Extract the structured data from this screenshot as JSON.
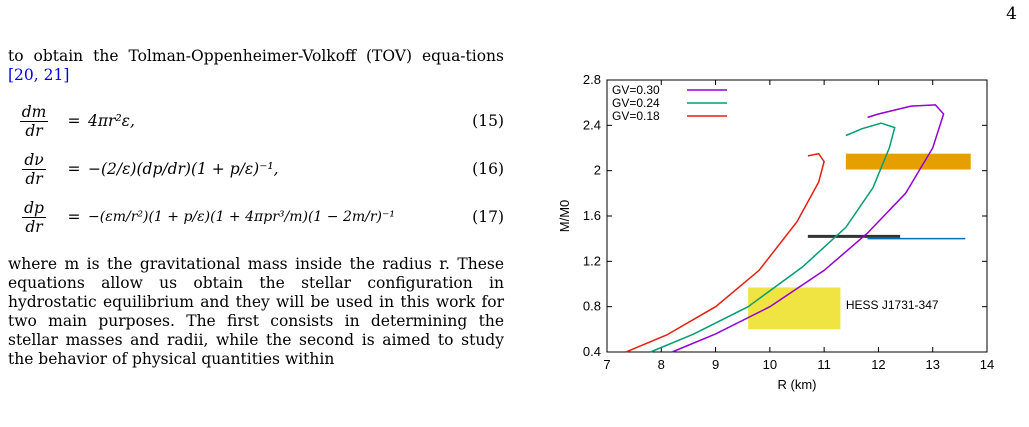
{
  "page_number": "4",
  "intro_text": "to obtain the Tolman-Oppenheimer-Volkoff (TOV) equa-tions",
  "intro_cites": "[20, 21]",
  "equations": [
    {
      "lhs_num": "dm",
      "lhs_den": "dr",
      "rhs": "4πr²ε,",
      "tag": "(15)"
    },
    {
      "lhs_num": "dν",
      "lhs_den": "dr",
      "rhs": "−(2/ε)(dp/dr)(1 + p/ε)⁻¹,",
      "tag": "(16)"
    },
    {
      "lhs_num": "dp",
      "lhs_den": "dr",
      "rhs": "−(εm/r²)(1 + p/ε)(1 + 4πpr³/m)(1 − 2m/r)⁻¹",
      "tag": "(17)"
    }
  ],
  "body_text": "where m is the gravitational mass inside the radius r. These equations allow us obtain the stellar configuration in hydrostatic equilibrium and they will be used in this work for two main purposes. The first consists in determining the stellar masses and radii, while the second is aimed to study the behavior of physical quantities within",
  "chart_data": {
    "type": "line",
    "xlabel": "R  (km)",
    "ylabel": "M/M0",
    "xlim": [
      7,
      14
    ],
    "ylim": [
      0.4,
      2.8
    ],
    "xticks": [
      "7",
      "8",
      "9",
      "10",
      "11",
      "12",
      "13",
      "14"
    ],
    "yticks": [
      "0.4",
      "0.8",
      "1.2",
      "1.6",
      "2",
      "2.4",
      "2.8"
    ],
    "legend_position": "top-left",
    "series": [
      {
        "name": "GV=0.30",
        "color": "#9400d3",
        "points": [
          [
            8.2,
            0.4
          ],
          [
            9.0,
            0.56
          ],
          [
            10.0,
            0.8
          ],
          [
            11.0,
            1.12
          ],
          [
            11.8,
            1.45
          ],
          [
            12.5,
            1.8
          ],
          [
            13.0,
            2.2
          ],
          [
            13.2,
            2.5
          ],
          [
            13.05,
            2.58
          ],
          [
            12.6,
            2.57
          ],
          [
            12.0,
            2.5
          ],
          [
            11.8,
            2.47
          ]
        ]
      },
      {
        "name": "GV=0.24",
        "color": "#009e73",
        "points": [
          [
            7.8,
            0.4
          ],
          [
            8.6,
            0.56
          ],
          [
            9.6,
            0.8
          ],
          [
            10.6,
            1.15
          ],
          [
            11.4,
            1.5
          ],
          [
            11.9,
            1.85
          ],
          [
            12.2,
            2.2
          ],
          [
            12.3,
            2.38
          ],
          [
            12.05,
            2.42
          ],
          [
            11.7,
            2.37
          ],
          [
            11.4,
            2.31
          ]
        ]
      },
      {
        "name": "GV=0.18",
        "color": "#e51e10",
        "points": [
          [
            7.35,
            0.4
          ],
          [
            8.1,
            0.55
          ],
          [
            9.0,
            0.8
          ],
          [
            9.8,
            1.12
          ],
          [
            10.5,
            1.55
          ],
          [
            10.9,
            1.9
          ],
          [
            11.0,
            2.08
          ],
          [
            10.9,
            2.15
          ],
          [
            10.7,
            2.13
          ]
        ]
      }
    ],
    "bands": [
      {
        "color": "#e69f00",
        "x": [
          11.4,
          13.7
        ],
        "y": [
          2.01,
          2.15
        ]
      },
      {
        "color": "#f0e442",
        "x": [
          9.6,
          11.3
        ],
        "y": [
          0.6,
          0.97
        ]
      }
    ],
    "error_bars": [
      {
        "color": "#333333",
        "x": [
          10.7,
          12.4
        ],
        "y": 1.42
      },
      {
        "color": "#0072b2",
        "x": [
          11.8,
          13.6
        ],
        "y": 1.4
      }
    ],
    "annotation": "HESS J1731-347"
  }
}
